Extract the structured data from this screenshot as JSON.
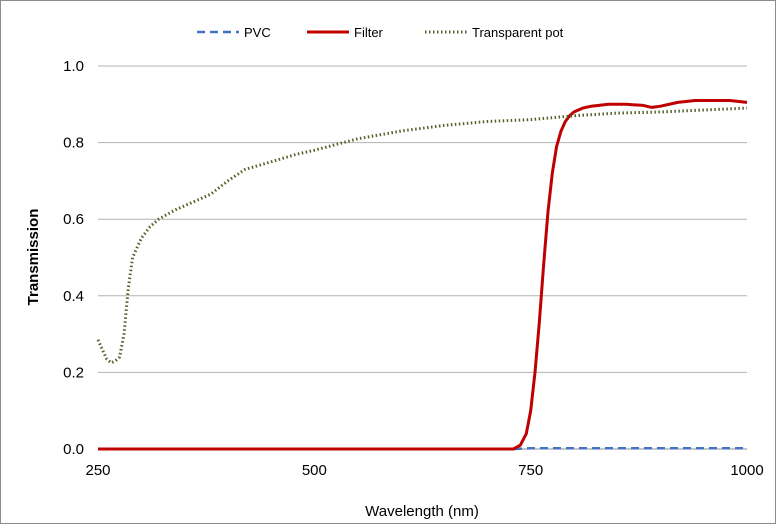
{
  "chart_data": {
    "type": "line",
    "title": "",
    "xlabel": "Wavelength (nm)",
    "ylabel": "Transmission",
    "xlim": [
      250,
      1000
    ],
    "ylim": [
      0,
      1
    ],
    "x_ticks": [
      "250",
      "500",
      "750",
      "1000"
    ],
    "y_ticks": [
      "0.0",
      "0.2",
      "0.4",
      "0.6",
      "0.8",
      "1.0"
    ],
    "grid": "horizontal",
    "legend_position": "top",
    "series": [
      {
        "name": "PVC",
        "color": "#4472c4",
        "style": "dashed",
        "x": [
          250,
          500,
          730,
          750,
          800,
          900,
          1000
        ],
        "y": [
          0,
          0,
          0,
          0.002,
          0.002,
          0.002,
          0.002
        ]
      },
      {
        "name": "Filter",
        "color": "#c00000",
        "style": "solid",
        "x": [
          250,
          500,
          730,
          738,
          745,
          750,
          755,
          760,
          765,
          770,
          775,
          780,
          785,
          790,
          795,
          800,
          810,
          820,
          840,
          860,
          880,
          890,
          900,
          920,
          940,
          960,
          980,
          1000
        ],
        "y": [
          0,
          0,
          0,
          0.01,
          0.04,
          0.1,
          0.2,
          0.33,
          0.48,
          0.62,
          0.72,
          0.79,
          0.83,
          0.855,
          0.87,
          0.88,
          0.89,
          0.895,
          0.9,
          0.9,
          0.897,
          0.892,
          0.895,
          0.905,
          0.91,
          0.91,
          0.91,
          0.905
        ]
      },
      {
        "name": "Transparent pot",
        "color": "#4f6228",
        "style": "dotted",
        "x": [
          250,
          255,
          260,
          265,
          270,
          275,
          280,
          285,
          290,
          300,
          310,
          320,
          340,
          360,
          380,
          400,
          420,
          450,
          480,
          500,
          550,
          600,
          650,
          700,
          750,
          800,
          850,
          900,
          950,
          1000
        ],
        "y": [
          0.285,
          0.26,
          0.235,
          0.225,
          0.23,
          0.24,
          0.3,
          0.42,
          0.5,
          0.55,
          0.58,
          0.6,
          0.625,
          0.645,
          0.665,
          0.7,
          0.73,
          0.75,
          0.77,
          0.78,
          0.81,
          0.83,
          0.845,
          0.855,
          0.86,
          0.87,
          0.877,
          0.88,
          0.885,
          0.89
        ]
      }
    ]
  }
}
